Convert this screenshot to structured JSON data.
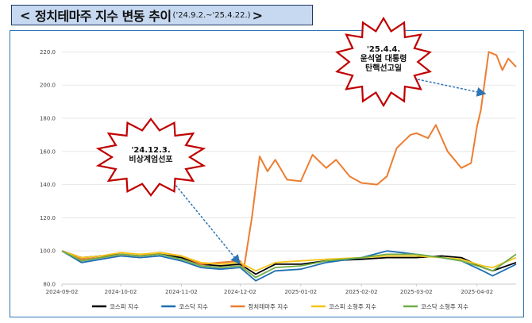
{
  "header": {
    "open": "<",
    "title": "정치테마주 지수 변동 추이",
    "period": "('24.9.2.~'25.4.22.)",
    "close": ">"
  },
  "chart_data": {
    "type": "line",
    "title": "정치테마주 지수 변동 추이",
    "period": "('24.9.2.~'25.4.22.)",
    "ylim": [
      80,
      225
    ],
    "yticks": [
      "80.0",
      "100.0",
      "120.0",
      "140.0",
      "160.0",
      "180.0",
      "200.0",
      "220.0"
    ],
    "xticks": [
      "2024-09-02",
      "2024-10-02",
      "2024-11-02",
      "2024-12-02",
      "2025-01-02",
      "2025-02-02",
      "2025-03-02",
      "2025-04-02"
    ],
    "grid": true,
    "legend_position": "bottom",
    "series": [
      {
        "name": "코스피 지수",
        "color": "#000000",
        "points": [
          [
            "2024-09-02",
            100
          ],
          [
            "2024-09-12",
            96
          ],
          [
            "2024-09-22",
            97
          ],
          [
            "2024-10-02",
            98
          ],
          [
            "2024-10-12",
            97
          ],
          [
            "2024-10-22",
            98
          ],
          [
            "2024-11-02",
            96
          ],
          [
            "2024-11-12",
            92
          ],
          [
            "2024-11-22",
            91
          ],
          [
            "2024-12-02",
            92
          ],
          [
            "2024-12-10",
            86
          ],
          [
            "2024-12-20",
            92
          ],
          [
            "2025-01-02",
            92
          ],
          [
            "2025-01-15",
            94
          ],
          [
            "2025-02-02",
            95
          ],
          [
            "2025-02-15",
            96
          ],
          [
            "2025-03-02",
            96
          ],
          [
            "2025-03-15",
            97
          ],
          [
            "2025-03-25",
            96
          ],
          [
            "2025-04-05",
            90
          ],
          [
            "2025-04-10",
            88
          ],
          [
            "2025-04-22",
            93
          ]
        ]
      },
      {
        "name": "코스닥 지수",
        "color": "#1f6fb2",
        "points": [
          [
            "2024-09-02",
            100
          ],
          [
            "2024-09-12",
            93
          ],
          [
            "2024-09-22",
            95
          ],
          [
            "2024-10-02",
            97
          ],
          [
            "2024-10-12",
            96
          ],
          [
            "2024-10-22",
            97
          ],
          [
            "2024-11-02",
            94
          ],
          [
            "2024-11-12",
            90
          ],
          [
            "2024-11-22",
            89
          ],
          [
            "2024-12-02",
            90
          ],
          [
            "2024-12-10",
            82
          ],
          [
            "2024-12-20",
            88
          ],
          [
            "2025-01-02",
            89
          ],
          [
            "2025-01-15",
            93
          ],
          [
            "2025-02-02",
            96
          ],
          [
            "2025-02-15",
            100
          ],
          [
            "2025-03-02",
            98
          ],
          [
            "2025-03-15",
            96
          ],
          [
            "2025-03-25",
            94
          ],
          [
            "2025-04-05",
            88
          ],
          [
            "2025-04-10",
            85
          ],
          [
            "2025-04-22",
            92
          ]
        ]
      },
      {
        "name": "정치테마주 지수",
        "color": "#ed7d31",
        "points": [
          [
            "2024-09-02",
            100
          ],
          [
            "2024-09-12",
            95
          ],
          [
            "2024-09-22",
            96
          ],
          [
            "2024-10-02",
            98
          ],
          [
            "2024-10-12",
            97
          ],
          [
            "2024-10-22",
            99
          ],
          [
            "2024-11-02",
            97
          ],
          [
            "2024-11-12",
            92
          ],
          [
            "2024-11-22",
            93
          ],
          [
            "2024-12-02",
            94
          ],
          [
            "2024-12-04",
            90
          ],
          [
            "2024-12-08",
            120
          ],
          [
            "2024-12-12",
            157
          ],
          [
            "2024-12-16",
            148
          ],
          [
            "2024-12-20",
            155
          ],
          [
            "2024-12-26",
            143
          ],
          [
            "2025-01-02",
            142
          ],
          [
            "2025-01-08",
            158
          ],
          [
            "2025-01-15",
            150
          ],
          [
            "2025-01-20",
            155
          ],
          [
            "2025-01-27",
            145
          ],
          [
            "2025-02-02",
            141
          ],
          [
            "2025-02-10",
            140
          ],
          [
            "2025-02-15",
            145
          ],
          [
            "2025-02-20",
            162
          ],
          [
            "2025-02-27",
            170
          ],
          [
            "2025-03-02",
            171
          ],
          [
            "2025-03-08",
            168
          ],
          [
            "2025-03-12",
            176
          ],
          [
            "2025-03-18",
            160
          ],
          [
            "2025-03-25",
            150
          ],
          [
            "2025-03-30",
            153
          ],
          [
            "2025-04-02",
            175
          ],
          [
            "2025-04-04",
            185
          ],
          [
            "2025-04-08",
            220
          ],
          [
            "2025-04-12",
            218
          ],
          [
            "2025-04-15",
            209
          ],
          [
            "2025-04-18",
            216
          ],
          [
            "2025-04-22",
            211
          ]
        ]
      },
      {
        "name": "코스피 소형주 지수",
        "color": "#f5c518",
        "points": [
          [
            "2024-09-02",
            100
          ],
          [
            "2024-09-12",
            96
          ],
          [
            "2024-09-22",
            97
          ],
          [
            "2024-10-02",
            99
          ],
          [
            "2024-10-12",
            98
          ],
          [
            "2024-10-22",
            99
          ],
          [
            "2024-11-02",
            97
          ],
          [
            "2024-11-12",
            93
          ],
          [
            "2024-11-22",
            92
          ],
          [
            "2024-12-02",
            93
          ],
          [
            "2024-12-10",
            88
          ],
          [
            "2024-12-20",
            93
          ],
          [
            "2025-01-02",
            94
          ],
          [
            "2025-01-15",
            95
          ],
          [
            "2025-02-02",
            96
          ],
          [
            "2025-02-15",
            97
          ],
          [
            "2025-03-02",
            97
          ],
          [
            "2025-03-15",
            96
          ],
          [
            "2025-03-25",
            95
          ],
          [
            "2025-04-05",
            91
          ],
          [
            "2025-04-10",
            90
          ],
          [
            "2025-04-22",
            96
          ]
        ]
      },
      {
        "name": "코스닥 소형주 지수",
        "color": "#70ad47",
        "points": [
          [
            "2024-09-02",
            100
          ],
          [
            "2024-09-12",
            94
          ],
          [
            "2024-09-22",
            96
          ],
          [
            "2024-10-02",
            98
          ],
          [
            "2024-10-12",
            97
          ],
          [
            "2024-10-22",
            98
          ],
          [
            "2024-11-02",
            95
          ],
          [
            "2024-11-12",
            91
          ],
          [
            "2024-11-22",
            90
          ],
          [
            "2024-12-02",
            91
          ],
          [
            "2024-12-10",
            84
          ],
          [
            "2024-12-20",
            90
          ],
          [
            "2025-01-02",
            91
          ],
          [
            "2025-01-15",
            94
          ],
          [
            "2025-02-02",
            96
          ],
          [
            "2025-02-15",
            98
          ],
          [
            "2025-03-02",
            98
          ],
          [
            "2025-03-15",
            96
          ],
          [
            "2025-03-25",
            94
          ],
          [
            "2025-04-05",
            90
          ],
          [
            "2025-04-10",
            88
          ],
          [
            "2025-04-22",
            98
          ]
        ]
      }
    ],
    "annotations": [
      {
        "lines": [
          "'24.12.3.",
          "비상계엄선포"
        ],
        "date": "2024-12-03"
      },
      {
        "lines": [
          "'25.4.4.",
          "윤석열 대통령",
          "탄핵선고일"
        ],
        "date": "2025-04-04"
      }
    ]
  }
}
